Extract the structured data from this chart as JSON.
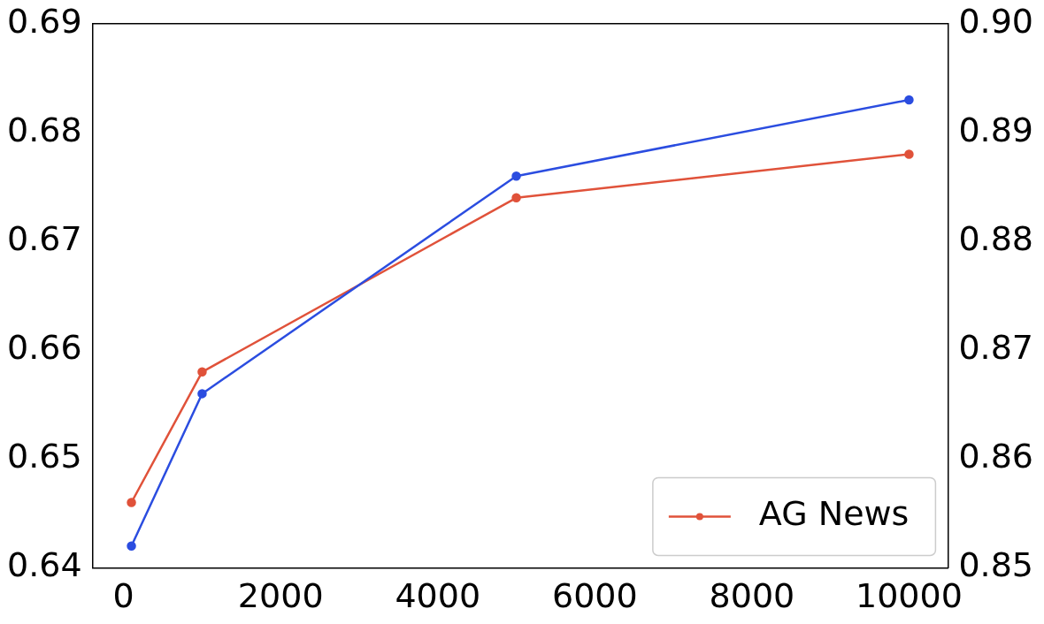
{
  "chart_data": {
    "type": "line",
    "x": [
      100,
      1000,
      5000,
      10000
    ],
    "series": [
      {
        "color": "#2b4de0",
        "values": [
          0.642,
          0.656,
          0.676,
          0.683
        ]
      },
      {
        "name": "AG News",
        "color": "#e0523a",
        "axis": "y2",
        "values": [
          0.856,
          0.868,
          0.884,
          0.888
        ]
      }
    ],
    "xlim": [
      -395,
      10495
    ],
    "xticks": [
      0,
      2000,
      4000,
      6000,
      8000,
      10000
    ],
    "ylim": [
      0.64,
      0.69
    ],
    "yticks": [
      0.64,
      0.65,
      0.66,
      0.67,
      0.68,
      0.69
    ],
    "y2lim": [
      0.85,
      0.9
    ],
    "y2ticks": [
      0.85,
      0.86,
      0.87,
      0.88,
      0.89,
      {
        "value": 0.9,
        "label": "0.90"
      }
    ],
    "grid": false,
    "legend": "bottom right",
    "marker": "circle",
    "line_style": "solid"
  }
}
